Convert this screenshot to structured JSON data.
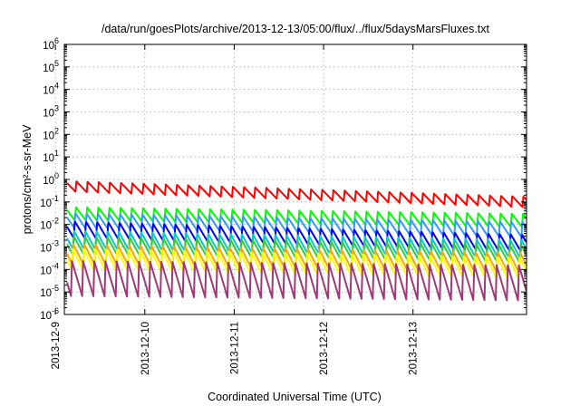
{
  "chart_data": {
    "type": "line",
    "title": "/data/run/goesPlots/archive/2013-12-13/05:00/flux/../flux/5daysMarsFluxes.txt",
    "xlabel": "Coordinated Universal Time (UTC)",
    "ylabel": "protons/cm²-s-sr-MeV",
    "ylog": true,
    "ylim": [
      1e-06,
      1000000.0
    ],
    "xlim": [
      -1.9,
      3.27
    ],
    "x_origin": "2013-12-11",
    "x_unit": "days",
    "yticks": [
      {
        "exp": -6,
        "label_base": "10",
        "label_exp": "-6"
      },
      {
        "exp": -5,
        "label_base": "10",
        "label_exp": "-5"
      },
      {
        "exp": -4,
        "label_base": "10",
        "label_exp": "-4"
      },
      {
        "exp": -3,
        "label_base": "10",
        "label_exp": "-3"
      },
      {
        "exp": -2,
        "label_base": "10",
        "label_exp": "-2"
      },
      {
        "exp": -1,
        "label_base": "10",
        "label_exp": "-1"
      },
      {
        "exp": 0,
        "label_base": "10",
        "label_exp": "0"
      },
      {
        "exp": 1,
        "label_base": "10",
        "label_exp": "1"
      },
      {
        "exp": 2,
        "label_base": "10",
        "label_exp": "2"
      },
      {
        "exp": 3,
        "label_base": "10",
        "label_exp": "3"
      },
      {
        "exp": 4,
        "label_base": "10",
        "label_exp": "4"
      },
      {
        "exp": 5,
        "label_base": "10",
        "label_exp": "5"
      },
      {
        "exp": 6,
        "label_base": "10",
        "label_exp": "6"
      }
    ],
    "xticks": [
      {
        "day": -2,
        "label": "2013-12-9"
      },
      {
        "day": -1,
        "label": "2013-12-10"
      },
      {
        "day": 0,
        "label": "2013-12-11"
      },
      {
        "day": 1,
        "label": "2013-12-12"
      },
      {
        "day": 2,
        "label": "2013-12-13"
      }
    ],
    "grid": true,
    "legend": "none",
    "series": [
      {
        "color": "#ff0000",
        "start": 0.5,
        "end": 0.1,
        "amp": 1.7
      },
      {
        "color": "#00ff00",
        "start": 0.03,
        "end": 0.015,
        "amp": 2.0
      },
      {
        "color": "#3399ff",
        "start": 0.015,
        "end": 0.006,
        "amp": 2.2
      },
      {
        "color": "#0000ff",
        "start": 0.006,
        "end": 0.0015,
        "amp": 2.4
      },
      {
        "color": "#00cccc",
        "start": 0.002,
        "end": 0.0008,
        "amp": 2.6
      },
      {
        "color": "#33cc33",
        "start": 0.0012,
        "end": 0.0005,
        "amp": 2.6
      },
      {
        "color": "#ffa500",
        "start": 0.0005,
        "end": 0.0002,
        "amp": 2.8
      },
      {
        "color": "#ffff00",
        "start": 0.0003,
        "end": 0.00012,
        "amp": 3.0
      },
      {
        "color": "#9e3a78",
        "start": 4e-05,
        "end": 2.5e-05,
        "amp": 6.0
      }
    ]
  }
}
